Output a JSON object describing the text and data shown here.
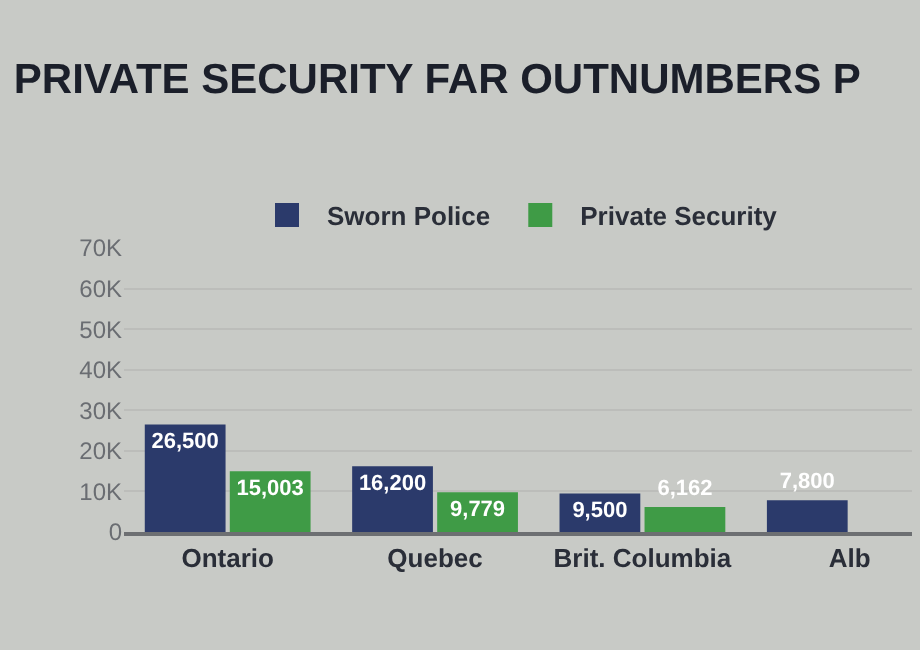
{
  "chart_data": {
    "type": "bar",
    "title": "PRIVATE SECURITY FAR OUTNUMBERS P",
    "categories": [
      "Ontario",
      "Quebec",
      "Brit. Columbia",
      "Alb"
    ],
    "series": [
      {
        "name": "Sworn Police",
        "color": "#2b3a6b",
        "values": [
          26500,
          16200,
          9500,
          7800
        ],
        "value_labels": [
          "26,500",
          "16,200",
          "9,500",
          "7,800"
        ]
      },
      {
        "name": "Private Security",
        "color": "#3f9b46",
        "values": [
          15003,
          9779,
          6162,
          null
        ],
        "value_labels": [
          "15,003",
          "9,779",
          "6,162",
          null
        ]
      }
    ],
    "ylim": [
      0,
      70000
    ],
    "yticks": [
      0,
      {
        "value": 10000,
        "label": "10K"
      },
      {
        "value": 20000,
        "label": "20K"
      },
      {
        "value": 30000,
        "label": "30K"
      },
      {
        "value": 40000,
        "label": "40K"
      },
      {
        "value": 50000,
        "label": "50K"
      },
      {
        "value": 60000,
        "label": "60K"
      },
      {
        "value": 70000,
        "label": "70K"
      }
    ],
    "grid": "y",
    "legend": "top"
  }
}
